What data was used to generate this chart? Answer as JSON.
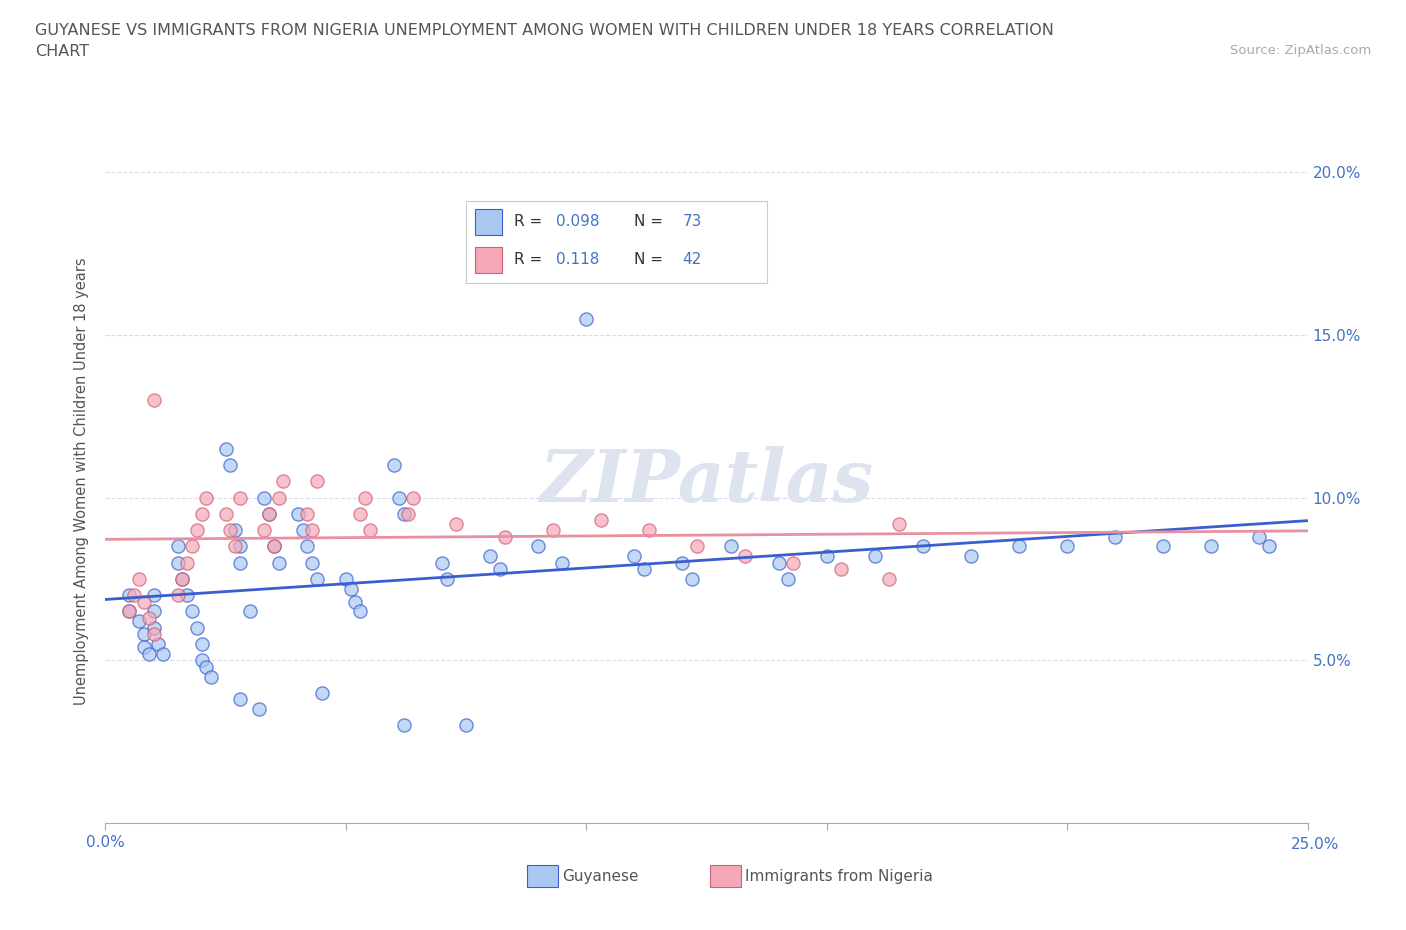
{
  "title_line1": "GUYANESE VS IMMIGRANTS FROM NIGERIA UNEMPLOYMENT AMONG WOMEN WITH CHILDREN UNDER 18 YEARS CORRELATION",
  "title_line2": "CHART",
  "source": "Source: ZipAtlas.com",
  "ylabel": "Unemployment Among Women with Children Under 18 years",
  "xlim": [
    0.0,
    0.25
  ],
  "ylim": [
    0.0,
    0.21
  ],
  "ytick_positions": [
    0.0,
    0.05,
    0.1,
    0.15,
    0.2
  ],
  "xtick_positions": [
    0.0,
    0.05,
    0.1,
    0.15,
    0.2,
    0.25
  ],
  "color_guyanese": "#a8c8f0",
  "color_nigeria": "#f5a8b8",
  "color_line_guyanese": "#3a5fcd",
  "color_line_nigeria": "#e88fa0",
  "color_axis_labels": "#4472c4",
  "background_color": "#ffffff",
  "grid_color": "#d8dce8",
  "watermark_color": "#dde4f0",
  "guyanese_x": [
    0.005,
    0.005,
    0.007,
    0.008,
    0.008,
    0.009,
    0.01,
    0.01,
    0.01,
    0.011,
    0.012,
    0.015,
    0.015,
    0.016,
    0.017,
    0.018,
    0.019,
    0.02,
    0.02,
    0.021,
    0.022,
    0.025,
    0.026,
    0.027,
    0.028,
    0.028,
    0.03,
    0.033,
    0.034,
    0.035,
    0.036,
    0.04,
    0.041,
    0.042,
    0.043,
    0.044,
    0.05,
    0.051,
    0.052,
    0.053,
    0.06,
    0.061,
    0.062,
    0.07,
    0.071,
    0.08,
    0.082,
    0.09,
    0.095,
    0.1,
    0.11,
    0.112,
    0.12,
    0.122,
    0.13,
    0.14,
    0.142,
    0.15,
    0.16,
    0.17,
    0.18,
    0.19,
    0.2,
    0.21,
    0.22,
    0.23,
    0.24,
    0.242,
    0.028,
    0.032,
    0.045,
    0.062,
    0.075
  ],
  "guyanese_y": [
    0.07,
    0.065,
    0.062,
    0.058,
    0.054,
    0.052,
    0.07,
    0.065,
    0.06,
    0.055,
    0.052,
    0.085,
    0.08,
    0.075,
    0.07,
    0.065,
    0.06,
    0.055,
    0.05,
    0.048,
    0.045,
    0.115,
    0.11,
    0.09,
    0.085,
    0.08,
    0.065,
    0.1,
    0.095,
    0.085,
    0.08,
    0.095,
    0.09,
    0.085,
    0.08,
    0.075,
    0.075,
    0.072,
    0.068,
    0.065,
    0.11,
    0.1,
    0.095,
    0.08,
    0.075,
    0.082,
    0.078,
    0.085,
    0.08,
    0.155,
    0.082,
    0.078,
    0.08,
    0.075,
    0.085,
    0.08,
    0.075,
    0.082,
    0.082,
    0.085,
    0.082,
    0.085,
    0.085,
    0.088,
    0.085,
    0.085,
    0.088,
    0.085,
    0.038,
    0.035,
    0.04,
    0.03,
    0.03
  ],
  "nigeria_x": [
    0.005,
    0.006,
    0.007,
    0.008,
    0.009,
    0.01,
    0.01,
    0.015,
    0.016,
    0.017,
    0.018,
    0.019,
    0.02,
    0.021,
    0.025,
    0.026,
    0.027,
    0.028,
    0.033,
    0.034,
    0.035,
    0.036,
    0.037,
    0.042,
    0.043,
    0.044,
    0.053,
    0.054,
    0.055,
    0.063,
    0.064,
    0.073,
    0.083,
    0.093,
    0.103,
    0.113,
    0.123,
    0.133,
    0.143,
    0.153,
    0.163,
    0.165
  ],
  "nigeria_y": [
    0.065,
    0.07,
    0.075,
    0.068,
    0.063,
    0.058,
    0.13,
    0.07,
    0.075,
    0.08,
    0.085,
    0.09,
    0.095,
    0.1,
    0.095,
    0.09,
    0.085,
    0.1,
    0.09,
    0.095,
    0.085,
    0.1,
    0.105,
    0.095,
    0.09,
    0.105,
    0.095,
    0.1,
    0.09,
    0.095,
    0.1,
    0.092,
    0.088,
    0.09,
    0.093,
    0.09,
    0.085,
    0.082,
    0.08,
    0.078,
    0.075,
    0.092
  ]
}
